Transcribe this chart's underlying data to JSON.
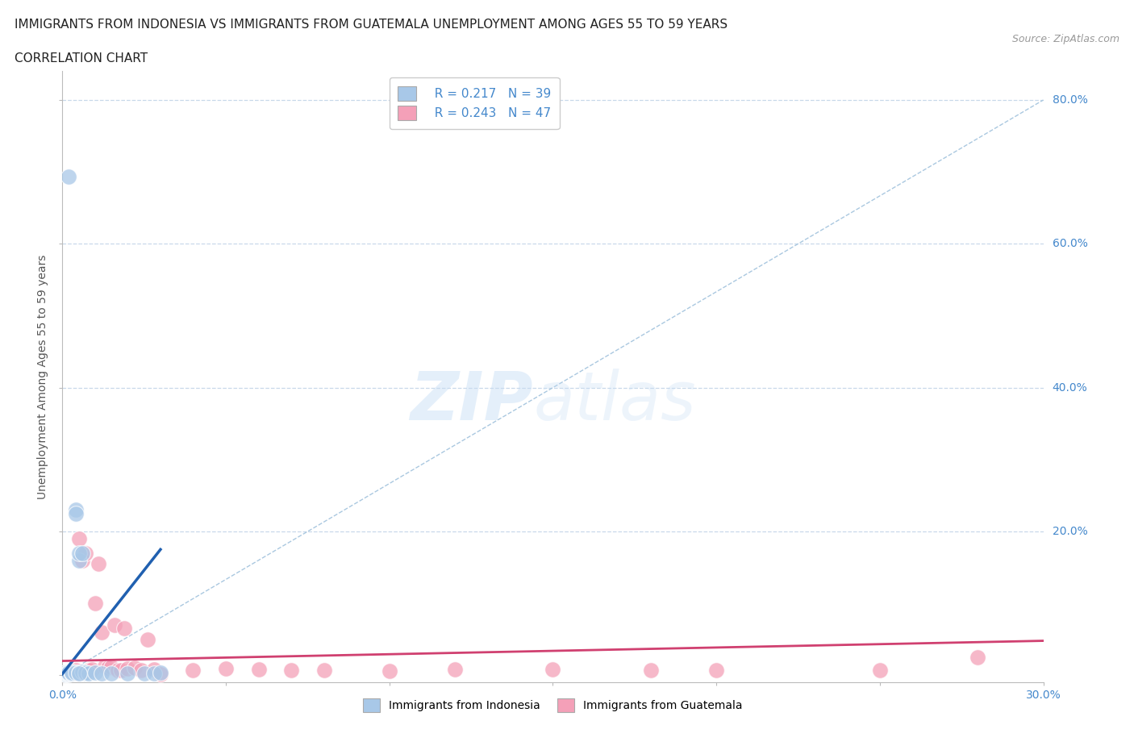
{
  "title_line1": "IMMIGRANTS FROM INDONESIA VS IMMIGRANTS FROM GUATEMALA UNEMPLOYMENT AMONG AGES 55 TO 59 YEARS",
  "title_line2": "CORRELATION CHART",
  "source_text": "Source: ZipAtlas.com",
  "ylabel": "Unemployment Among Ages 55 to 59 years",
  "xlim": [
    0.0,
    0.3
  ],
  "ylim": [
    -0.01,
    0.84
  ],
  "xticks": [
    0.0,
    0.05,
    0.1,
    0.15,
    0.2,
    0.25,
    0.3
  ],
  "xticklabels": [
    "0.0%",
    "",
    "",
    "",
    "",
    "",
    "30.0%"
  ],
  "ytick_positions": [
    0.0,
    0.2,
    0.4,
    0.6,
    0.8
  ],
  "ytick_labels": [
    "",
    "20.0%",
    "40.0%",
    "60.0%",
    "80.0%"
  ],
  "indonesia_R": 0.217,
  "indonesia_N": 39,
  "guatemala_R": 0.243,
  "guatemala_N": 47,
  "indonesia_color": "#a8c8e8",
  "guatemala_color": "#f4a0b8",
  "indonesia_trend_color": "#2060b0",
  "guatemala_trend_color": "#d04070",
  "diagonal_color": "#aac8e0",
  "background_color": "#ffffff",
  "grid_color": "#c8d8ea",
  "title_fontsize": 11,
  "axis_label_fontsize": 10,
  "tick_fontsize": 10,
  "legend_fontsize": 11,
  "indonesia_x": [
    0.001,
    0.001,
    0.001,
    0.001,
    0.001,
    0.002,
    0.002,
    0.002,
    0.002,
    0.002,
    0.002,
    0.002,
    0.002,
    0.002,
    0.003,
    0.003,
    0.003,
    0.003,
    0.003,
    0.003,
    0.004,
    0.004,
    0.004,
    0.005,
    0.005,
    0.005,
    0.006,
    0.006,
    0.007,
    0.007,
    0.008,
    0.01,
    0.012,
    0.015,
    0.02,
    0.025,
    0.028,
    0.03,
    0.005
  ],
  "indonesia_y": [
    0.002,
    0.003,
    0.002,
    0.003,
    0.004,
    0.002,
    0.003,
    0.004,
    0.005,
    0.003,
    0.004,
    0.693,
    0.003,
    0.004,
    0.003,
    0.004,
    0.005,
    0.003,
    0.003,
    0.004,
    0.23,
    0.225,
    0.004,
    0.16,
    0.17,
    0.004,
    0.17,
    0.005,
    0.003,
    0.004,
    0.003,
    0.004,
    0.003,
    0.003,
    0.003,
    0.003,
    0.003,
    0.004,
    0.003
  ],
  "guatemala_x": [
    0.001,
    0.001,
    0.001,
    0.002,
    0.002,
    0.002,
    0.002,
    0.003,
    0.003,
    0.003,
    0.004,
    0.004,
    0.005,
    0.005,
    0.006,
    0.007,
    0.008,
    0.008,
    0.009,
    0.01,
    0.011,
    0.012,
    0.013,
    0.014,
    0.015,
    0.016,
    0.017,
    0.018,
    0.019,
    0.02,
    0.022,
    0.024,
    0.026,
    0.028,
    0.03,
    0.04,
    0.05,
    0.06,
    0.07,
    0.08,
    0.1,
    0.12,
    0.15,
    0.18,
    0.2,
    0.25,
    0.28
  ],
  "guatemala_y": [
    0.003,
    0.004,
    0.002,
    0.003,
    0.005,
    0.004,
    0.003,
    0.006,
    0.005,
    0.003,
    0.005,
    0.007,
    0.004,
    0.19,
    0.16,
    0.17,
    0.006,
    0.007,
    0.008,
    0.1,
    0.155,
    0.06,
    0.013,
    0.011,
    0.012,
    0.07,
    0.007,
    0.007,
    0.065,
    0.009,
    0.011,
    0.007,
    0.05,
    0.008,
    0.002,
    0.007,
    0.009,
    0.008,
    0.007,
    0.007,
    0.006,
    0.008,
    0.008,
    0.007,
    0.007,
    0.007,
    0.025
  ],
  "indo_trend_x": [
    0.0,
    0.03
  ],
  "indo_trend_y_start": 0.002,
  "indo_trend_y_end": 0.175,
  "guat_trend_x": [
    0.0,
    0.3
  ],
  "guat_trend_y_start": 0.02,
  "guat_trend_y_end": 0.048
}
